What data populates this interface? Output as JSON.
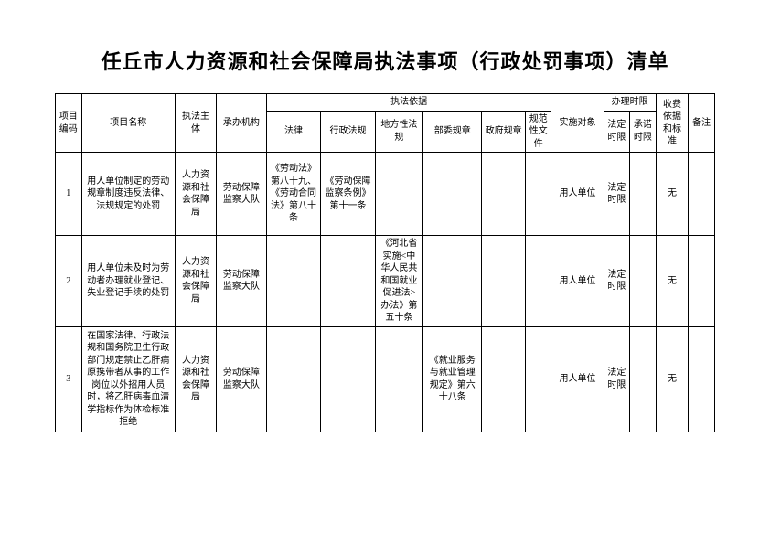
{
  "title": "任丘市人力资源和社会保障局执法事项（行政处罚事项）清单",
  "headers": {
    "code": "项目编码",
    "name": "项目名称",
    "subject": "执法主体",
    "org": "承办机构",
    "basis_group": "执法依据",
    "law": "法律",
    "admin_reg": "行政法规",
    "local_reg": "地方性法规",
    "dept_rule": "部委规章",
    "gov_rule": "政府规章",
    "norm_doc": "规范性文件",
    "target": "实施对象",
    "time_group": "办理时限",
    "legal_time": "法定时限",
    "promise_time": "承诺时限",
    "fee": "收费依据和标准",
    "remark": "备注"
  },
  "rows": [
    {
      "code": "1",
      "name": "用人单位制定的劳动规章制度违反法律、法规规定的处罚",
      "subject": "人力资源和社会保障局",
      "org": "劳动保障监察大队",
      "law": "《劳动法》第八十九、《劳动合同法》第八十条",
      "admin_reg": "《劳动保障监察条例》第十一条",
      "local_reg": "",
      "dept_rule": "",
      "gov_rule": "",
      "norm_doc": "",
      "target": "用人单位",
      "legal_time": "法定时限",
      "promise_time": "",
      "fee": "无",
      "remark": ""
    },
    {
      "code": "2",
      "name": "用人单位未及时为劳动者办理就业登记、失业登记手续的处罚",
      "subject": "人力资源和社会保障局",
      "org": "劳动保障监察大队",
      "law": "",
      "admin_reg": "",
      "local_reg": "《河北省实施<中华人民共和国就业促进法>办法》第五十条",
      "dept_rule": "",
      "gov_rule": "",
      "norm_doc": "",
      "target": "用人单位",
      "legal_time": "法定时限",
      "promise_time": "",
      "fee": "无",
      "remark": ""
    },
    {
      "code": "3",
      "name": "在国家法律、行政法规和国务院卫生行政部门规定禁止乙肝病原携带者从事的工作岗位以外招用人员时，将乙肝病毒血清学指标作为体检标准拒绝",
      "subject": "人力资源和社会保障局",
      "org": "劳动保障监察大队",
      "law": "",
      "admin_reg": "",
      "local_reg": "",
      "dept_rule": "《就业服务与就业管理规定》第六十八条",
      "gov_rule": "",
      "norm_doc": "",
      "target": "用人单位",
      "legal_time": "法定时限",
      "promise_time": "",
      "fee": "无",
      "remark": ""
    }
  ]
}
